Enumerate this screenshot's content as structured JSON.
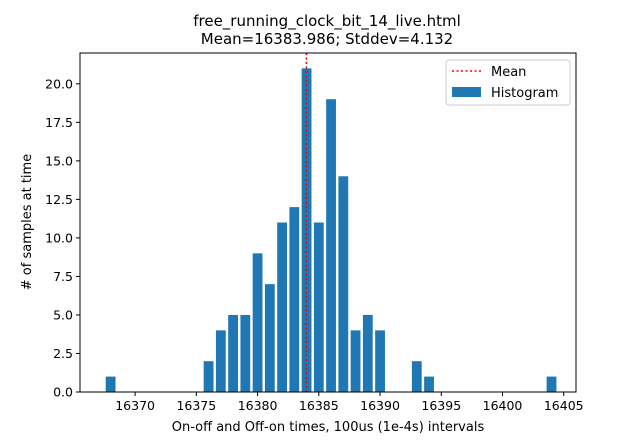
{
  "chart_data": {
    "type": "bar",
    "title": "free_running_clock_bit_14_live.html",
    "subtitle": "Mean=16383.986; Stddev=4.132",
    "xlabel": "On-off and Off-on times, 100us (1e-4s) intervals",
    "ylabel": "# of samples at time",
    "xlim": [
      16365.5,
      16406.0
    ],
    "ylim": [
      0,
      22
    ],
    "x_ticks": [
      16370,
      16375,
      16380,
      16385,
      16390,
      16395,
      16400,
      16405
    ],
    "x_tick_labels": [
      "16370",
      "16375",
      "16380",
      "16385",
      "16390",
      "16395",
      "16400",
      "16405"
    ],
    "y_ticks": [
      0,
      2.5,
      5,
      7.5,
      10,
      12.5,
      15,
      17.5,
      20
    ],
    "y_tick_labels": [
      "0.0",
      "2.5",
      "5.0",
      "7.5",
      "10.0",
      "12.5",
      "15.0",
      "17.5",
      "20.0"
    ],
    "grid": false,
    "legend": {
      "placement": "top-right",
      "entries": [
        "Mean",
        "Histogram"
      ]
    },
    "mean": 16383.986,
    "mean_color": "#ff0000",
    "bar_color": "#1f77b4",
    "series": [
      {
        "name": "Histogram",
        "x": [
          16368,
          16376,
          16377,
          16378,
          16379,
          16380,
          16381,
          16382,
          16383,
          16384,
          16385,
          16386,
          16387,
          16388,
          16389,
          16390,
          16393,
          16394,
          16404
        ],
        "values": [
          1,
          2,
          4,
          5,
          5,
          9,
          7,
          11,
          12,
          21,
          11,
          19,
          14,
          4,
          5,
          4,
          2,
          1,
          1
        ]
      }
    ]
  }
}
